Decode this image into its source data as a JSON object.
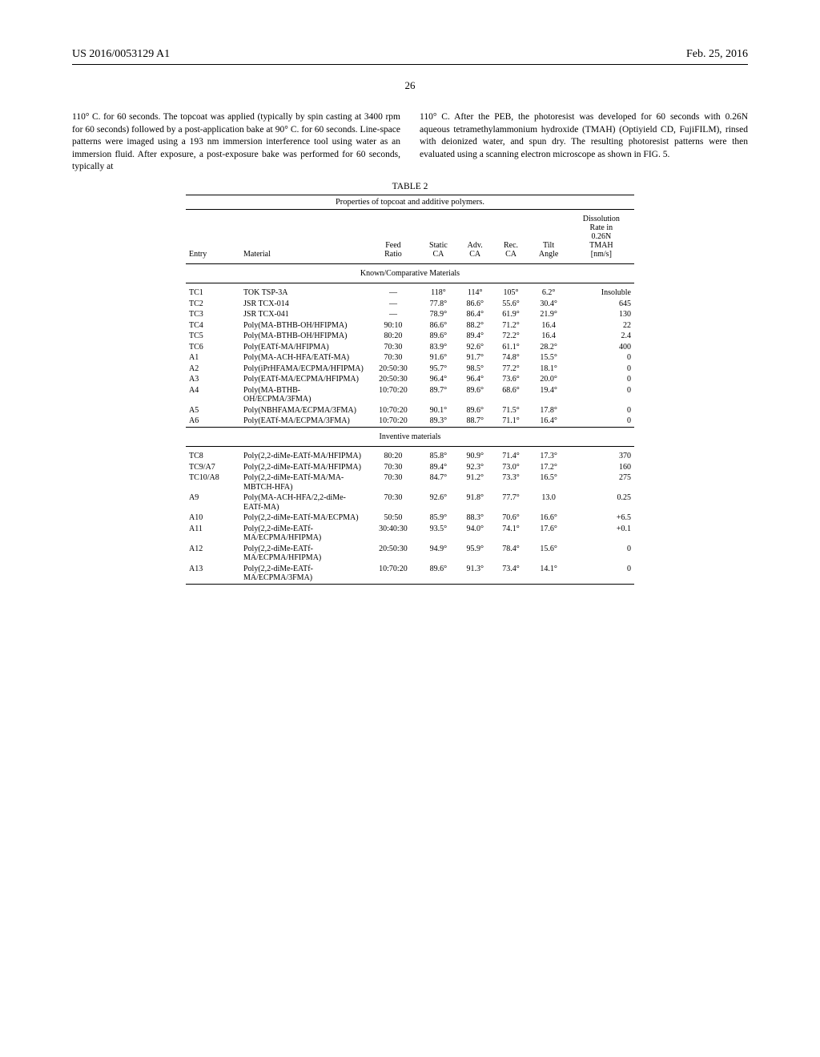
{
  "header": {
    "left": "US 2016/0053129 A1",
    "right": "Feb. 25, 2016"
  },
  "page_number": "26",
  "body": {
    "left_para": "110° C. for 60 seconds. The topcoat was applied (typically by spin casting at 3400 rpm for 60 seconds) followed by a post-application bake at 90° C. for 60 seconds. Line-space patterns were imaged using a 193 nm immersion interference tool using water as an immersion fluid. After exposure, a post-exposure bake was performed for 60 seconds, typically at",
    "right_para": "110° C. After the PEB, the photoresist was developed for 60 seconds with 0.26N aqueous tetramethylammonium hydroxide (TMAH) (Optiyield CD, FujiFILM), rinsed with deionized water, and spun dry. The resulting photoresist patterns were then evaluated using a scanning electron microscope as shown in FIG. 5."
  },
  "table": {
    "label": "TABLE 2",
    "caption": "Properties of topcoat and additive polymers.",
    "columns": [
      "Entry",
      "Material",
      "Feed Ratio",
      "Static CA",
      "Adv. CA",
      "Rec. CA",
      "Tilt Angle",
      "Dissolution Rate in 0.26N TMAH [nm/s]"
    ],
    "section1": "Known/Comparative Materials",
    "rows1": [
      [
        "TC1",
        "TOK TSP-3A",
        "—",
        "118°",
        "114°",
        "105°",
        "6.2°",
        "Insoluble"
      ],
      [
        "TC2",
        "JSR TCX-014",
        "—",
        "77.8°",
        "86.6°",
        "55.6°",
        "30.4°",
        "645"
      ],
      [
        "TC3",
        "JSR TCX-041",
        "—",
        "78.9°",
        "86.4°",
        "61.9°",
        "21.9°",
        "130"
      ],
      [
        "TC4",
        "Poly(MA-BTHB-OH/HFIPMA)",
        "90:10",
        "86.6°",
        "88.2°",
        "71.2°",
        "16.4",
        "22"
      ],
      [
        "TC5",
        "Poly(MA-BTHB-OH/HFIPMA)",
        "80:20",
        "89.6°",
        "89.4°",
        "72.2°",
        "16.4",
        "2.4"
      ],
      [
        "TC6",
        "Poly(EATf-MA/HFIPMA)",
        "70:30",
        "83.9°",
        "92.6°",
        "61.1°",
        "28.2°",
        "400"
      ],
      [
        "A1",
        "Poly(MA-ACH-HFA/EATf-MA)",
        "70:30",
        "91.6°",
        "91.7°",
        "74.8°",
        "15.5°",
        "0"
      ],
      [
        "A2",
        "Poly(iPrHFAMA/ECPMA/HFIPMA)",
        "20:50:30",
        "95.7°",
        "98.5°",
        "77.2°",
        "18.1°",
        "0"
      ],
      [
        "A3",
        "Poly(EATf-MA/ECPMA/HFIPMA)",
        "20:50:30",
        "96.4°",
        "96.4°",
        "73.6°",
        "20.0°",
        "0"
      ],
      [
        "A4",
        "Poly(MA-BTHB-OH/ECPMA/3FMA)",
        "10:70:20",
        "89.7°",
        "89.6°",
        "68.6°",
        "19.4°",
        "0"
      ],
      [
        "A5",
        "Poly(NBHFAMA/ECPMA/3FMA)",
        "10:70:20",
        "90.1°",
        "89.6°",
        "71.5°",
        "17.8°",
        "0"
      ],
      [
        "A6",
        "Poly(EATf-MA/ECPMA/3FMA)",
        "10:70:20",
        "89.3°",
        "88.7°",
        "71.1°",
        "16.4°",
        "0"
      ]
    ],
    "section2": "Inventive materials",
    "rows2": [
      [
        "TC8",
        "Poly(2,2-diMe-EATf-MA/HFIPMA)",
        "80:20",
        "85.8°",
        "90.9°",
        "71.4°",
        "17.3°",
        "370"
      ],
      [
        "TC9/A7",
        "Poly(2,2-diMe-EATf-MA/HFIPMA)",
        "70:30",
        "89.4°",
        "92.3°",
        "73.0°",
        "17.2°",
        "160"
      ],
      [
        "TC10/A8",
        "Poly(2,2-diMe-EATf-MA/MA-MBTCH-HFA)",
        "70:30",
        "84.7°",
        "91.2°",
        "73.3°",
        "16.5°",
        "275"
      ],
      [
        "A9",
        "Poly(MA-ACH-HFA/2,2-diMe-EATf-MA)",
        "70:30",
        "92.6°",
        "91.8°",
        "77.7°",
        "13.0",
        "0.25"
      ],
      [
        "A10",
        "Poly(2,2-diMe-EATf-MA/ECPMA)",
        "50:50",
        "85.9°",
        "88.3°",
        "70.6°",
        "16.6°",
        "+6.5"
      ],
      [
        "A11",
        "Poly(2,2-diMe-EATf-MA/ECPMA/HFIPMA)",
        "30:40:30",
        "93.5°",
        "94.0°",
        "74.1°",
        "17.6°",
        "+0.1"
      ],
      [
        "A12",
        "Poly(2,2-diMe-EATf-MA/ECPMA/HFIPMA)",
        "20:50:30",
        "94.9°",
        "95.9°",
        "78.4°",
        "15.6°",
        "0"
      ],
      [
        "A13",
        "Poly(2,2-diMe-EATf-MA/ECPMA/3FMA)",
        "10:70:20",
        "89.6°",
        "91.3°",
        "73.4°",
        "14.1°",
        "0"
      ]
    ]
  }
}
